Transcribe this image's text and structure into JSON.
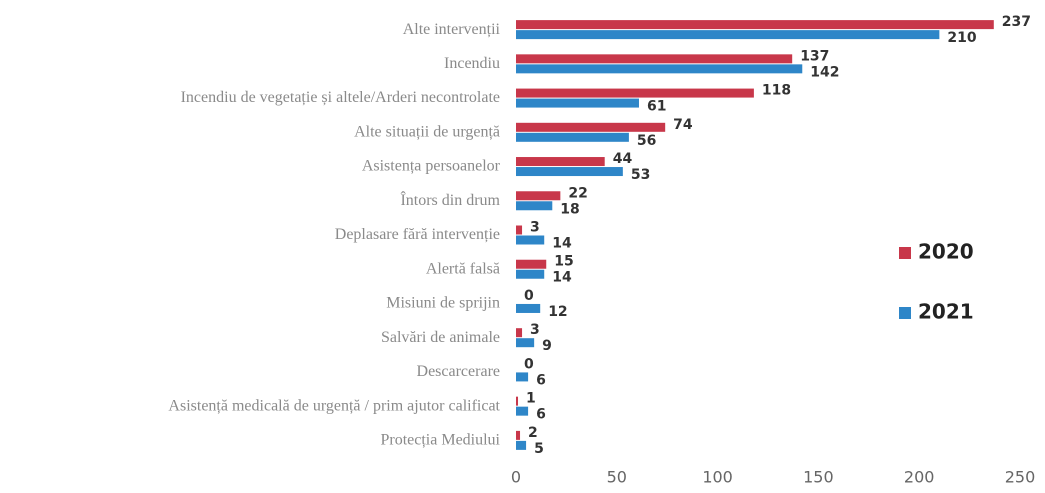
{
  "chart_data": {
    "type": "bar",
    "orientation": "horizontal",
    "categories": [
      "Alte intervenții",
      "Incendiu",
      "Incendiu de vegetație și altele/Arderi necontrolate",
      "Alte situații de urgență",
      "Asistența persoanelor",
      "Întors din drum",
      "Deplasare fără intervenție",
      "Alertă falsă",
      "Misiuni de sprijin",
      "Salvări de animale",
      "Descarcerare",
      "Asistență medicală de urgență / prim ajutor calificat",
      "Protecția Mediului"
    ],
    "series": [
      {
        "name": "2020",
        "color": "#c8374a",
        "values": [
          237,
          137,
          118,
          74,
          44,
          22,
          3,
          15,
          0,
          3,
          0,
          1,
          2
        ]
      },
      {
        "name": "2021",
        "color": "#2e86c8",
        "values": [
          210,
          142,
          61,
          56,
          53,
          18,
          14,
          14,
          12,
          9,
          6,
          6,
          5
        ]
      }
    ],
    "xlim": [
      0,
      250
    ],
    "xticks": [
      0,
      50,
      100,
      150,
      200,
      250
    ],
    "legend": "right"
  }
}
